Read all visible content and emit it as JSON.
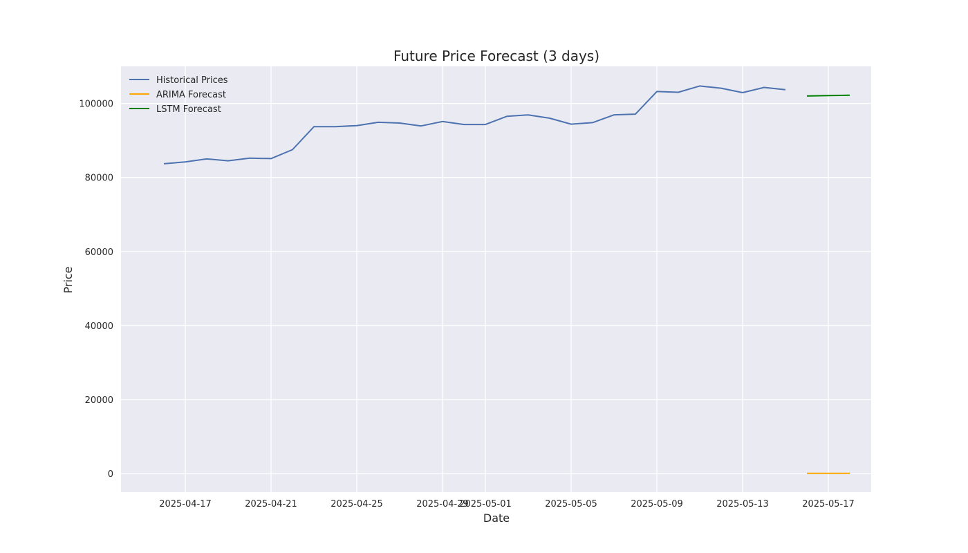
{
  "chart_data": {
    "type": "line",
    "title": "Future Price Forecast (3 days)",
    "xlabel": "Date",
    "ylabel": "Price",
    "x_axis_type": "date",
    "xlim": [
      "2025-04-14",
      "2025-05-19"
    ],
    "ylim": [
      -5000,
      110000
    ],
    "x_ticks": [
      "2025-04-17",
      "2025-04-21",
      "2025-04-25",
      "2025-04-29",
      "2025-05-01",
      "2025-05-05",
      "2025-05-09",
      "2025-05-13",
      "2025-05-17"
    ],
    "y_ticks": [
      0,
      20000,
      40000,
      60000,
      80000,
      100000
    ],
    "grid": true,
    "background_color": "#eaeaf2",
    "legend_position": "top-left",
    "series": [
      {
        "name": "Historical Prices",
        "color": "#4c72b0",
        "points": [
          {
            "x": "2025-04-16",
            "y": 83700
          },
          {
            "x": "2025-04-17",
            "y": 84200
          },
          {
            "x": "2025-04-18",
            "y": 85000
          },
          {
            "x": "2025-04-19",
            "y": 84500
          },
          {
            "x": "2025-04-20",
            "y": 85200
          },
          {
            "x": "2025-04-21",
            "y": 85100
          },
          {
            "x": "2025-04-22",
            "y": 87500
          },
          {
            "x": "2025-04-23",
            "y": 93700
          },
          {
            "x": "2025-04-24",
            "y": 93700
          },
          {
            "x": "2025-04-25",
            "y": 94000
          },
          {
            "x": "2025-04-26",
            "y": 94900
          },
          {
            "x": "2025-04-27",
            "y": 94700
          },
          {
            "x": "2025-04-28",
            "y": 93900
          },
          {
            "x": "2025-04-29",
            "y": 95100
          },
          {
            "x": "2025-04-30",
            "y": 94300
          },
          {
            "x": "2025-05-01",
            "y": 94300
          },
          {
            "x": "2025-05-02",
            "y": 96500
          },
          {
            "x": "2025-05-03",
            "y": 96900
          },
          {
            "x": "2025-05-04",
            "y": 96000
          },
          {
            "x": "2025-05-05",
            "y": 94400
          },
          {
            "x": "2025-05-06",
            "y": 94800
          },
          {
            "x": "2025-05-07",
            "y": 96900
          },
          {
            "x": "2025-05-08",
            "y": 97100
          },
          {
            "x": "2025-05-09",
            "y": 103200
          },
          {
            "x": "2025-05-10",
            "y": 103000
          },
          {
            "x": "2025-05-11",
            "y": 104700
          },
          {
            "x": "2025-05-12",
            "y": 104100
          },
          {
            "x": "2025-05-13",
            "y": 102900
          },
          {
            "x": "2025-05-14",
            "y": 104300
          },
          {
            "x": "2025-05-15",
            "y": 103700
          }
        ]
      },
      {
        "name": "ARIMA Forecast",
        "color": "#ffa500",
        "points": [
          {
            "x": "2025-05-16",
            "y": 100
          },
          {
            "x": "2025-05-17",
            "y": 100
          },
          {
            "x": "2025-05-18",
            "y": 100
          }
        ]
      },
      {
        "name": "LSTM Forecast",
        "color": "#008000",
        "points": [
          {
            "x": "2025-05-16",
            "y": 102000
          },
          {
            "x": "2025-05-17",
            "y": 102100
          },
          {
            "x": "2025-05-18",
            "y": 102200
          }
        ]
      }
    ]
  }
}
